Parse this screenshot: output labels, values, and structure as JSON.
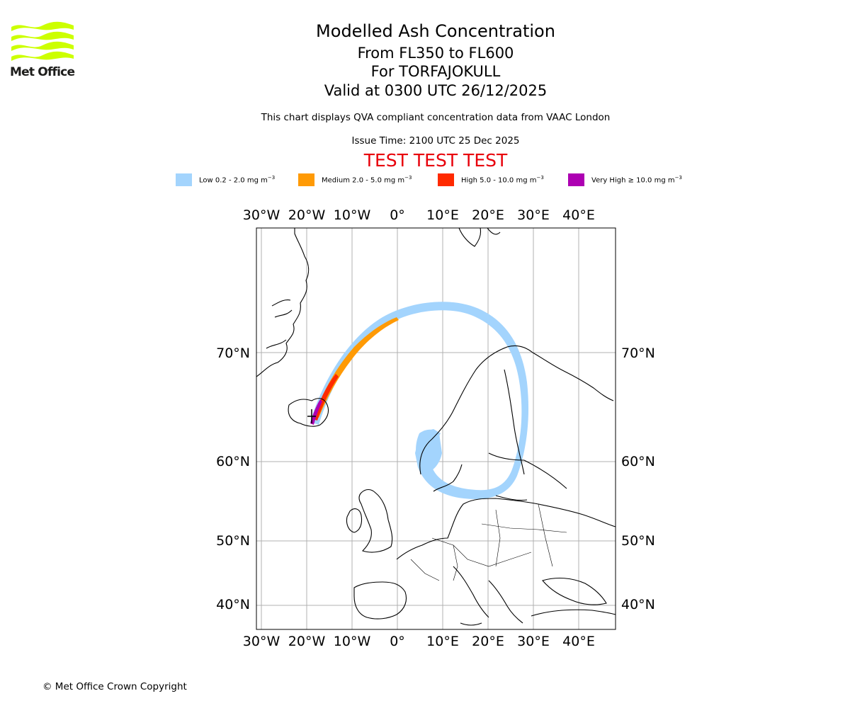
{
  "logo": {
    "text": "Met Office",
    "color": "#ccff00"
  },
  "header": {
    "title": "Modelled Ash Concentration",
    "levels": "From FL350 to FL600",
    "volcano": "For TORFAJOKULL",
    "valid": "Valid at 0300 UTC 26/12/2025",
    "description": "This chart displays QVA compliant concentration data from VAAC London",
    "issue_time": "Issue Time: 2100 UTC 25 Dec 2025",
    "test_banner": "TEST TEST TEST"
  },
  "legend": [
    {
      "label": "Low 0.2 - 2.0 mg m",
      "exp": "−3",
      "color": "#a3d4fd"
    },
    {
      "label": "Medium 2.0 - 5.0 mg m",
      "exp": "−3",
      "color": "#ff9a05"
    },
    {
      "label": "High 5.0 - 10.0 mg m",
      "exp": "−3",
      "color": "#ff2a00"
    },
    {
      "label": "Very High  ≥  10.0 mg m",
      "exp": "−3",
      "color": "#ad00b2"
    }
  ],
  "map": {
    "lon_labels": [
      "30°W",
      "20°W",
      "10°W",
      "0°",
      "10°E",
      "20°E",
      "30°E",
      "40°E"
    ],
    "lat_labels": [
      "70°N",
      "60°N",
      "50°N",
      "40°N"
    ],
    "gridline_color": "#b0b0b0"
  },
  "footer": {
    "copyright": "© Met Office Crown Copyright"
  }
}
